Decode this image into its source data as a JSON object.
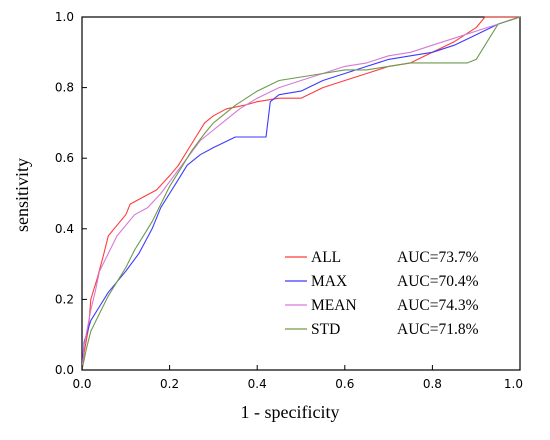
{
  "chart_data": {
    "type": "line",
    "title": "",
    "xlabel": "1 - specificity",
    "ylabel": "sensitivity",
    "xlim": [
      0.0,
      1.0
    ],
    "ylim": [
      0.0,
      1.0
    ],
    "x_tick_labels": [
      "0.0",
      "0.2",
      "0.4",
      "0.6",
      "0.8",
      "1.0"
    ],
    "y_tick_labels": [
      "0.0",
      "0.2",
      "0.4",
      "0.6",
      "0.8",
      "1.0"
    ],
    "grid": false,
    "legend_position": "bottom-right",
    "series": [
      {
        "name": "ALL",
        "auc_label": "AUC=73.7%",
        "color": "#ff3b3b",
        "points": [
          [
            0,
            0
          ],
          [
            0.005,
            0.05
          ],
          [
            0.015,
            0.12
          ],
          [
            0.02,
            0.2
          ],
          [
            0.035,
            0.26
          ],
          [
            0.05,
            0.33
          ],
          [
            0.06,
            0.38
          ],
          [
            0.08,
            0.41
          ],
          [
            0.1,
            0.44
          ],
          [
            0.11,
            0.47
          ],
          [
            0.14,
            0.49
          ],
          [
            0.17,
            0.51
          ],
          [
            0.2,
            0.55
          ],
          [
            0.22,
            0.58
          ],
          [
            0.24,
            0.62
          ],
          [
            0.26,
            0.66
          ],
          [
            0.28,
            0.7
          ],
          [
            0.3,
            0.72
          ],
          [
            0.33,
            0.74
          ],
          [
            0.37,
            0.75
          ],
          [
            0.4,
            0.76
          ],
          [
            0.45,
            0.77
          ],
          [
            0.5,
            0.77
          ],
          [
            0.55,
            0.8
          ],
          [
            0.6,
            0.82
          ],
          [
            0.65,
            0.84
          ],
          [
            0.7,
            0.86
          ],
          [
            0.75,
            0.87
          ],
          [
            0.8,
            0.9
          ],
          [
            0.85,
            0.93
          ],
          [
            0.9,
            0.97
          ],
          [
            0.92,
            1.0
          ],
          [
            1.0,
            1.0
          ]
        ]
      },
      {
        "name": "MAX",
        "auc_label": "AUC=70.4%",
        "color": "#3b3bff",
        "points": [
          [
            0,
            0
          ],
          [
            0.005,
            0.08
          ],
          [
            0.02,
            0.14
          ],
          [
            0.04,
            0.18
          ],
          [
            0.06,
            0.22
          ],
          [
            0.08,
            0.25
          ],
          [
            0.1,
            0.28
          ],
          [
            0.13,
            0.33
          ],
          [
            0.16,
            0.4
          ],
          [
            0.18,
            0.46
          ],
          [
            0.2,
            0.5
          ],
          [
            0.22,
            0.54
          ],
          [
            0.24,
            0.58
          ],
          [
            0.27,
            0.61
          ],
          [
            0.3,
            0.63
          ],
          [
            0.35,
            0.66
          ],
          [
            0.4,
            0.66
          ],
          [
            0.42,
            0.66
          ],
          [
            0.43,
            0.76
          ],
          [
            0.45,
            0.78
          ],
          [
            0.5,
            0.79
          ],
          [
            0.55,
            0.82
          ],
          [
            0.6,
            0.84
          ],
          [
            0.65,
            0.86
          ],
          [
            0.7,
            0.88
          ],
          [
            0.75,
            0.89
          ],
          [
            0.8,
            0.9
          ],
          [
            0.85,
            0.92
          ],
          [
            0.9,
            0.95
          ],
          [
            0.95,
            0.98
          ],
          [
            1.0,
            1.0
          ]
        ]
      },
      {
        "name": "MEAN",
        "auc_label": "AUC=74.3%",
        "color": "#d57ad5",
        "points": [
          [
            0,
            0
          ],
          [
            0.005,
            0.07
          ],
          [
            0.02,
            0.17
          ],
          [
            0.03,
            0.22
          ],
          [
            0.04,
            0.28
          ],
          [
            0.06,
            0.33
          ],
          [
            0.08,
            0.38
          ],
          [
            0.1,
            0.41
          ],
          [
            0.12,
            0.44
          ],
          [
            0.15,
            0.46
          ],
          [
            0.18,
            0.5
          ],
          [
            0.21,
            0.55
          ],
          [
            0.24,
            0.6
          ],
          [
            0.27,
            0.65
          ],
          [
            0.3,
            0.68
          ],
          [
            0.33,
            0.71
          ],
          [
            0.36,
            0.74
          ],
          [
            0.4,
            0.77
          ],
          [
            0.45,
            0.8
          ],
          [
            0.5,
            0.82
          ],
          [
            0.55,
            0.84
          ],
          [
            0.6,
            0.86
          ],
          [
            0.65,
            0.87
          ],
          [
            0.7,
            0.89
          ],
          [
            0.75,
            0.9
          ],
          [
            0.8,
            0.92
          ],
          [
            0.85,
            0.94
          ],
          [
            0.9,
            0.96
          ],
          [
            0.95,
            0.98
          ],
          [
            1.0,
            1.0
          ]
        ]
      },
      {
        "name": "STD",
        "auc_label": "AUC=71.8%",
        "color": "#6e9a4e",
        "points": [
          [
            0,
            0
          ],
          [
            0.01,
            0.06
          ],
          [
            0.02,
            0.11
          ],
          [
            0.04,
            0.16
          ],
          [
            0.06,
            0.21
          ],
          [
            0.08,
            0.25
          ],
          [
            0.1,
            0.29
          ],
          [
            0.12,
            0.34
          ],
          [
            0.14,
            0.38
          ],
          [
            0.16,
            0.42
          ],
          [
            0.18,
            0.47
          ],
          [
            0.2,
            0.52
          ],
          [
            0.22,
            0.56
          ],
          [
            0.25,
            0.62
          ],
          [
            0.28,
            0.67
          ],
          [
            0.3,
            0.7
          ],
          [
            0.35,
            0.75
          ],
          [
            0.4,
            0.79
          ],
          [
            0.45,
            0.82
          ],
          [
            0.5,
            0.83
          ],
          [
            0.55,
            0.84
          ],
          [
            0.6,
            0.85
          ],
          [
            0.65,
            0.85
          ],
          [
            0.7,
            0.86
          ],
          [
            0.75,
            0.87
          ],
          [
            0.8,
            0.87
          ],
          [
            0.85,
            0.87
          ],
          [
            0.88,
            0.87
          ],
          [
            0.9,
            0.88
          ],
          [
            0.92,
            0.92
          ],
          [
            0.95,
            0.98
          ],
          [
            1.0,
            1.0
          ]
        ]
      }
    ]
  }
}
